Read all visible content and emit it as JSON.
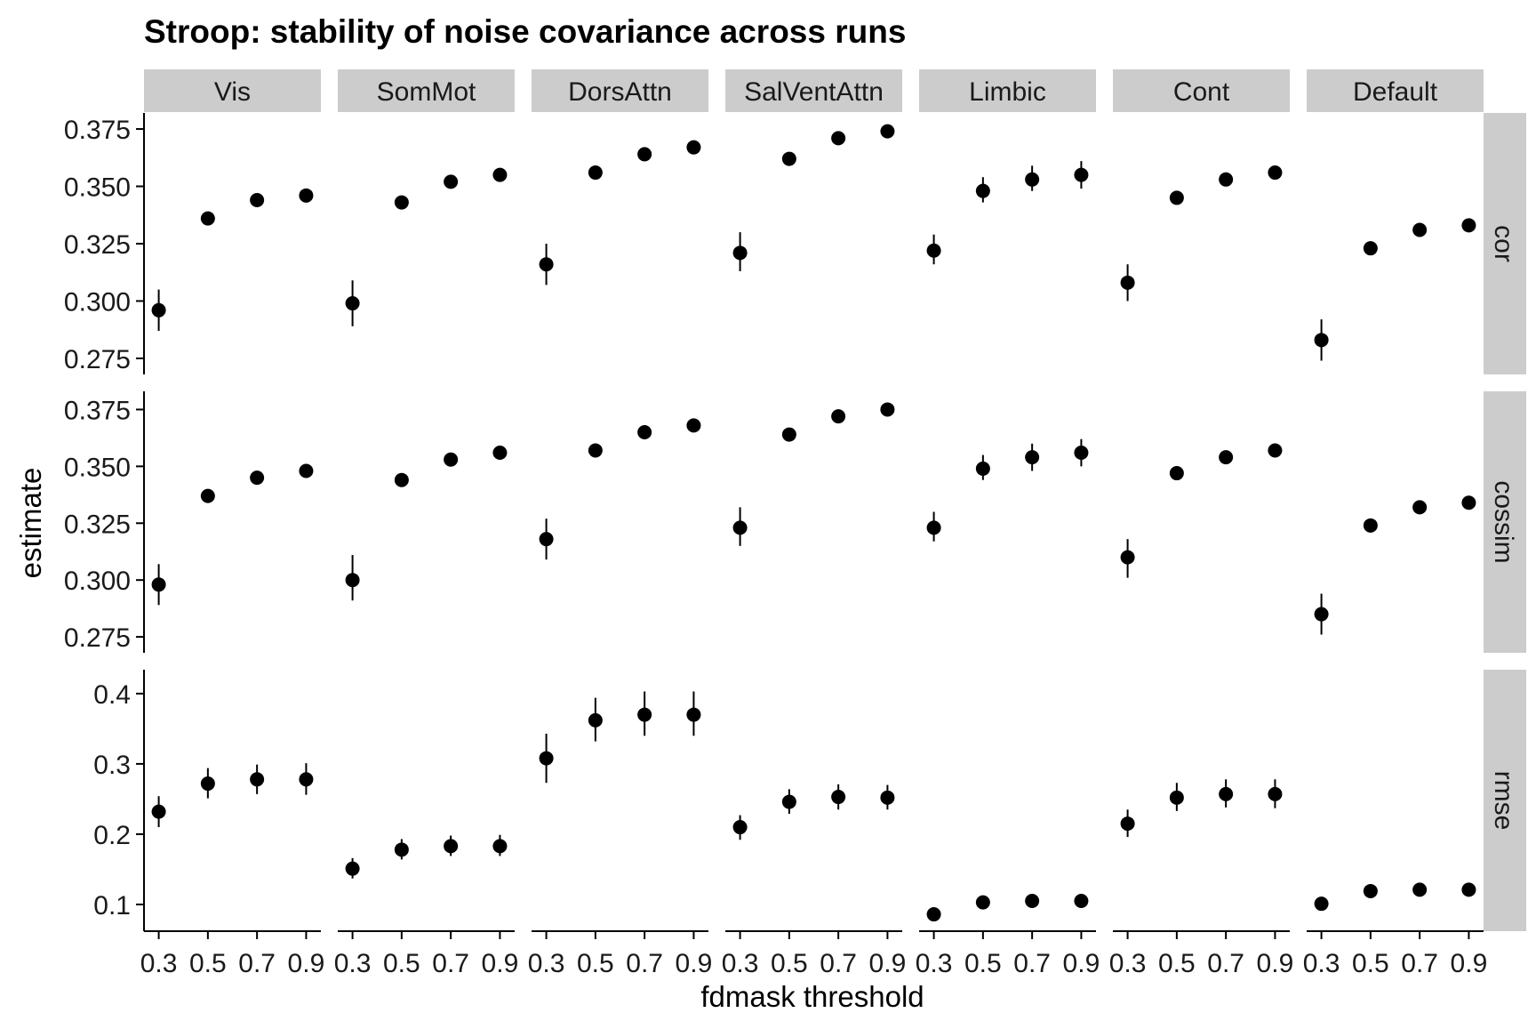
{
  "chart_data": {
    "type": "scatter",
    "title": "Stroop: stability of noise covariance across runs",
    "xlabel": "fdmask threshold",
    "ylabel": "estimate",
    "x": [
      0.3,
      0.5,
      0.7,
      0.9
    ],
    "x_tick_labels": [
      "0.3",
      "0.5",
      "0.7",
      "0.9"
    ],
    "columns": [
      "Vis",
      "SomMot",
      "DorsAttn",
      "SalVentAttn",
      "Limbic",
      "Cont",
      "Default"
    ],
    "rows": [
      {
        "label": "cor",
        "ylim": [
          0.268,
          0.382
        ],
        "y_ticks": [
          0.275,
          0.3,
          0.325,
          0.35,
          0.375
        ],
        "y_tick_labels": [
          "0.275",
          "0.300",
          "0.325",
          "0.350",
          "0.375"
        ],
        "series": [
          {
            "column": "Vis",
            "values": [
              0.296,
              0.336,
              0.344,
              0.346
            ],
            "lower": [
              0.287,
              0.334,
              0.342,
              0.344
            ],
            "upper": [
              0.305,
              0.338,
              0.346,
              0.348
            ]
          },
          {
            "column": "SomMot",
            "values": [
              0.299,
              0.343,
              0.352,
              0.355
            ],
            "lower": [
              0.289,
              0.341,
              0.35,
              0.353
            ],
            "upper": [
              0.309,
              0.345,
              0.354,
              0.357
            ]
          },
          {
            "column": "DorsAttn",
            "values": [
              0.316,
              0.356,
              0.364,
              0.367
            ],
            "lower": [
              0.307,
              0.354,
              0.362,
              0.365
            ],
            "upper": [
              0.325,
              0.358,
              0.366,
              0.369
            ]
          },
          {
            "column": "SalVentAttn",
            "values": [
              0.321,
              0.362,
              0.371,
              0.374
            ],
            "lower": [
              0.313,
              0.36,
              0.369,
              0.372
            ],
            "upper": [
              0.33,
              0.364,
              0.373,
              0.376
            ]
          },
          {
            "column": "Limbic",
            "values": [
              0.322,
              0.348,
              0.353,
              0.355
            ],
            "lower": [
              0.316,
              0.343,
              0.348,
              0.349
            ],
            "upper": [
              0.329,
              0.354,
              0.359,
              0.361
            ]
          },
          {
            "column": "Cont",
            "values": [
              0.308,
              0.345,
              0.353,
              0.356
            ],
            "lower": [
              0.3,
              0.343,
              0.351,
              0.354
            ],
            "upper": [
              0.316,
              0.347,
              0.355,
              0.358
            ]
          },
          {
            "column": "Default",
            "values": [
              0.283,
              0.323,
              0.331,
              0.333
            ],
            "lower": [
              0.274,
              0.321,
              0.329,
              0.331
            ],
            "upper": [
              0.292,
              0.325,
              0.333,
              0.335
            ]
          }
        ]
      },
      {
        "label": "cossim",
        "ylim": [
          0.268,
          0.383
        ],
        "y_ticks": [
          0.275,
          0.3,
          0.325,
          0.35,
          0.375
        ],
        "y_tick_labels": [
          "0.275",
          "0.300",
          "0.325",
          "0.350",
          "0.375"
        ],
        "series": [
          {
            "column": "Vis",
            "values": [
              0.298,
              0.337,
              0.345,
              0.348
            ],
            "lower": [
              0.289,
              0.335,
              0.343,
              0.346
            ],
            "upper": [
              0.307,
              0.339,
              0.347,
              0.35
            ]
          },
          {
            "column": "SomMot",
            "values": [
              0.3,
              0.344,
              0.353,
              0.356
            ],
            "lower": [
              0.291,
              0.342,
              0.351,
              0.354
            ],
            "upper": [
              0.311,
              0.346,
              0.355,
              0.358
            ]
          },
          {
            "column": "DorsAttn",
            "values": [
              0.318,
              0.357,
              0.365,
              0.368
            ],
            "lower": [
              0.309,
              0.355,
              0.363,
              0.366
            ],
            "upper": [
              0.327,
              0.359,
              0.367,
              0.37
            ]
          },
          {
            "column": "SalVentAttn",
            "values": [
              0.323,
              0.364,
              0.372,
              0.375
            ],
            "lower": [
              0.315,
              0.362,
              0.37,
              0.373
            ],
            "upper": [
              0.332,
              0.366,
              0.374,
              0.377
            ]
          },
          {
            "column": "Limbic",
            "values": [
              0.323,
              0.349,
              0.354,
              0.356
            ],
            "lower": [
              0.317,
              0.344,
              0.348,
              0.35
            ],
            "upper": [
              0.33,
              0.355,
              0.36,
              0.362
            ]
          },
          {
            "column": "Cont",
            "values": [
              0.31,
              0.347,
              0.354,
              0.357
            ],
            "lower": [
              0.301,
              0.345,
              0.352,
              0.355
            ],
            "upper": [
              0.318,
              0.349,
              0.356,
              0.359
            ]
          },
          {
            "column": "Default",
            "values": [
              0.285,
              0.324,
              0.332,
              0.334
            ],
            "lower": [
              0.276,
              0.322,
              0.33,
              0.332
            ],
            "upper": [
              0.294,
              0.326,
              0.334,
              0.336
            ]
          }
        ]
      },
      {
        "label": "rmse",
        "ylim": [
          0.062,
          0.434
        ],
        "y_ticks": [
          0.1,
          0.2,
          0.3,
          0.4
        ],
        "y_tick_labels": [
          "0.1",
          "0.2",
          "0.3",
          "0.4"
        ],
        "series": [
          {
            "column": "Vis",
            "values": [
              0.232,
              0.272,
              0.278,
              0.278
            ],
            "lower": [
              0.21,
              0.251,
              0.257,
              0.256
            ],
            "upper": [
              0.254,
              0.294,
              0.299,
              0.301
            ]
          },
          {
            "column": "SomMot",
            "values": [
              0.151,
              0.178,
              0.183,
              0.183
            ],
            "lower": [
              0.137,
              0.164,
              0.169,
              0.169
            ],
            "upper": [
              0.166,
              0.193,
              0.198,
              0.199
            ]
          },
          {
            "column": "DorsAttn",
            "values": [
              0.308,
              0.362,
              0.37,
              0.37
            ],
            "lower": [
              0.273,
              0.332,
              0.34,
              0.34
            ],
            "upper": [
              0.343,
              0.394,
              0.403,
              0.403
            ]
          },
          {
            "column": "SalVentAttn",
            "values": [
              0.21,
              0.246,
              0.253,
              0.252
            ],
            "lower": [
              0.192,
              0.229,
              0.235,
              0.235
            ],
            "upper": [
              0.227,
              0.264,
              0.271,
              0.27
            ]
          },
          {
            "column": "Limbic",
            "values": [
              0.086,
              0.103,
              0.105,
              0.105
            ],
            "lower": [
              0.08,
              0.097,
              0.099,
              0.099
            ],
            "upper": [
              0.092,
              0.109,
              0.111,
              0.111
            ]
          },
          {
            "column": "Cont",
            "values": [
              0.215,
              0.252,
              0.257,
              0.257
            ],
            "lower": [
              0.196,
              0.233,
              0.238,
              0.237
            ],
            "upper": [
              0.235,
              0.273,
              0.278,
              0.278
            ]
          },
          {
            "column": "Default",
            "values": [
              0.101,
              0.119,
              0.121,
              0.121
            ],
            "lower": [
              0.096,
              0.114,
              0.116,
              0.116
            ],
            "upper": [
              0.106,
              0.124,
              0.126,
              0.126
            ]
          }
        ]
      }
    ],
    "colors": {
      "point": "#000000",
      "strip": "#cccccc",
      "strip_text": "#1a1a1a",
      "axis": "#000000",
      "background": "#ffffff"
    },
    "grid": false,
    "legend": "none"
  }
}
